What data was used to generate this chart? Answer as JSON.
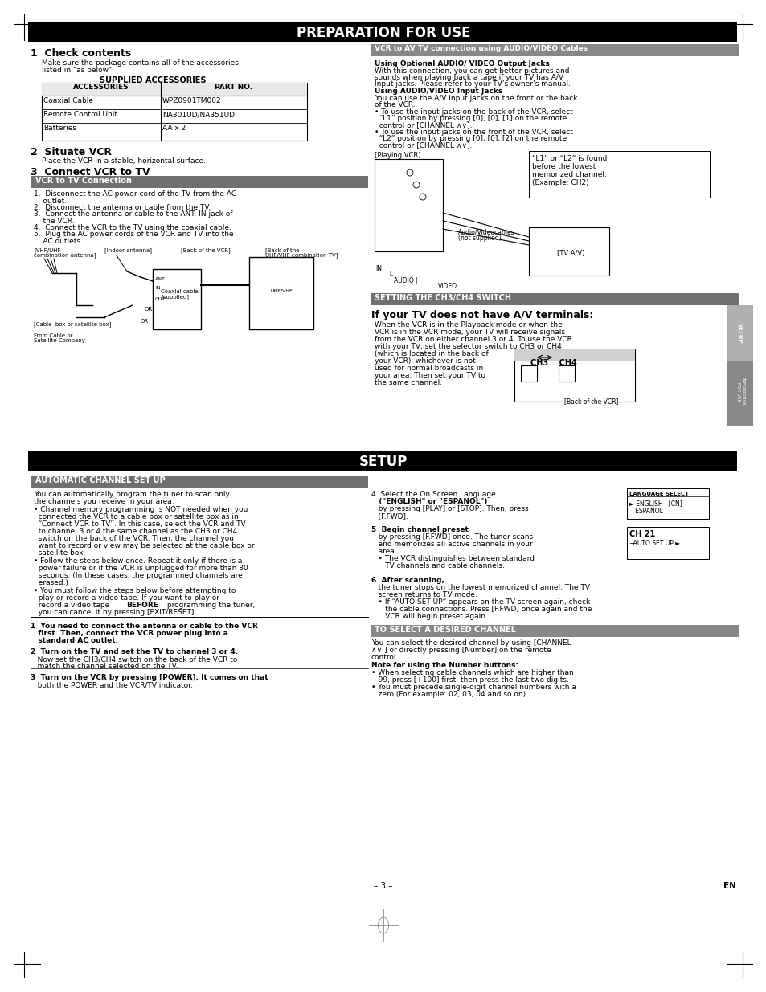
{
  "title": "PREPARATION FOR USE",
  "title2": "SETUP",
  "bg_color": "#ffffff",
  "header_bg": "#000000",
  "header_text_color": "#ffffff",
  "gray_header_bg": "#707070",
  "gray_header_bg2": "#888888",
  "body_text_color": "#000000",
  "page_number": "- 3 -",
  "page_en": "EN"
}
